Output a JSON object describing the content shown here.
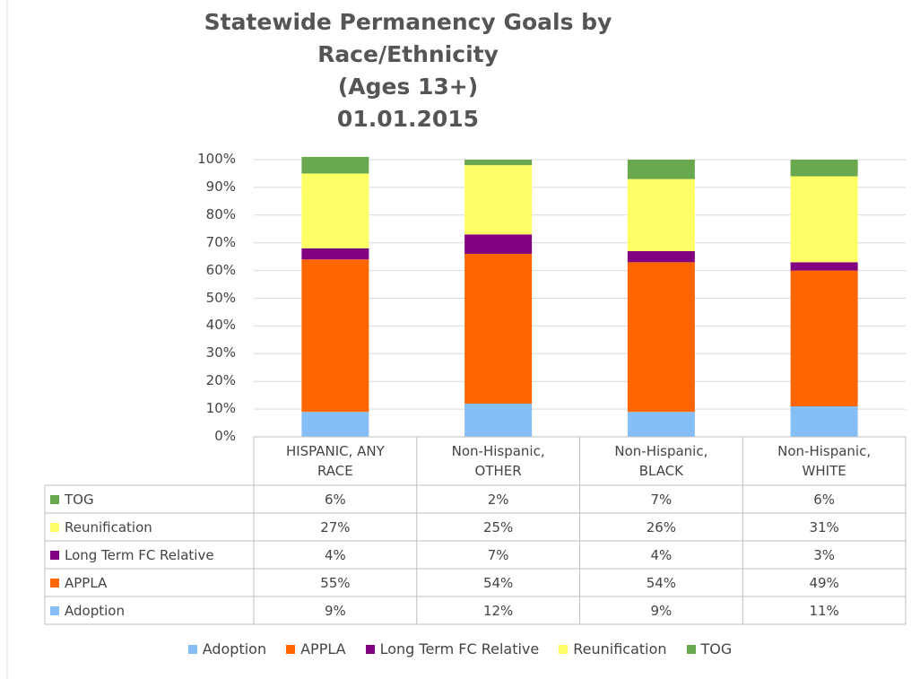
{
  "chart_data": {
    "type": "stacked_bar",
    "title": [
      "Statewide Permanency Goals by",
      "Race/Ethnicity",
      "(Ages 13+)",
      "01.01.2015"
    ],
    "categories": [
      "HISPANIC, ANY RACE",
      "Non-Hispanic, OTHER",
      "Non-Hispanic, BLACK",
      "Non-Hispanic, WHITE"
    ],
    "series": [
      {
        "name": "Adoption",
        "color": "#86bff7",
        "values": [
          9,
          12,
          9,
          11
        ],
        "value_labels": [
          "9%",
          "12%",
          "9%",
          "11%"
        ]
      },
      {
        "name": "APPLA",
        "color": "#ff6600",
        "values": [
          55,
          54,
          54,
          49
        ],
        "value_labels": [
          "55%",
          "54%",
          "54%",
          "49%"
        ]
      },
      {
        "name": "Long Term FC Relative",
        "color": "#800080",
        "values": [
          4,
          7,
          4,
          3
        ],
        "value_labels": [
          "4%",
          "7%",
          "4%",
          "3%"
        ]
      },
      {
        "name": "Reunification",
        "color": "#ffff66",
        "values": [
          27,
          25,
          26,
          31
        ],
        "value_labels": [
          "27%",
          "25%",
          "26%",
          "31%"
        ]
      },
      {
        "name": "TOG",
        "color": "#6aa84f",
        "values": [
          6,
          2,
          7,
          6
        ],
        "value_labels": [
          "6%",
          "2%",
          "7%",
          "6%"
        ]
      }
    ],
    "ylim": [
      0,
      100
    ],
    "yticks": [
      {
        "value": 0,
        "label": "0%"
      },
      {
        "value": 10,
        "label": "10%"
      },
      {
        "value": 20,
        "label": "20%"
      },
      {
        "value": 30,
        "label": "30%"
      },
      {
        "value": 40,
        "label": "40%"
      },
      {
        "value": 50,
        "label": "50%"
      },
      {
        "value": 60,
        "label": "60%"
      },
      {
        "value": 70,
        "label": "70%"
      },
      {
        "value": 80,
        "label": "80%"
      },
      {
        "value": 90,
        "label": "90%"
      },
      {
        "value": 100,
        "label": "100%"
      }
    ],
    "grid": true
  }
}
